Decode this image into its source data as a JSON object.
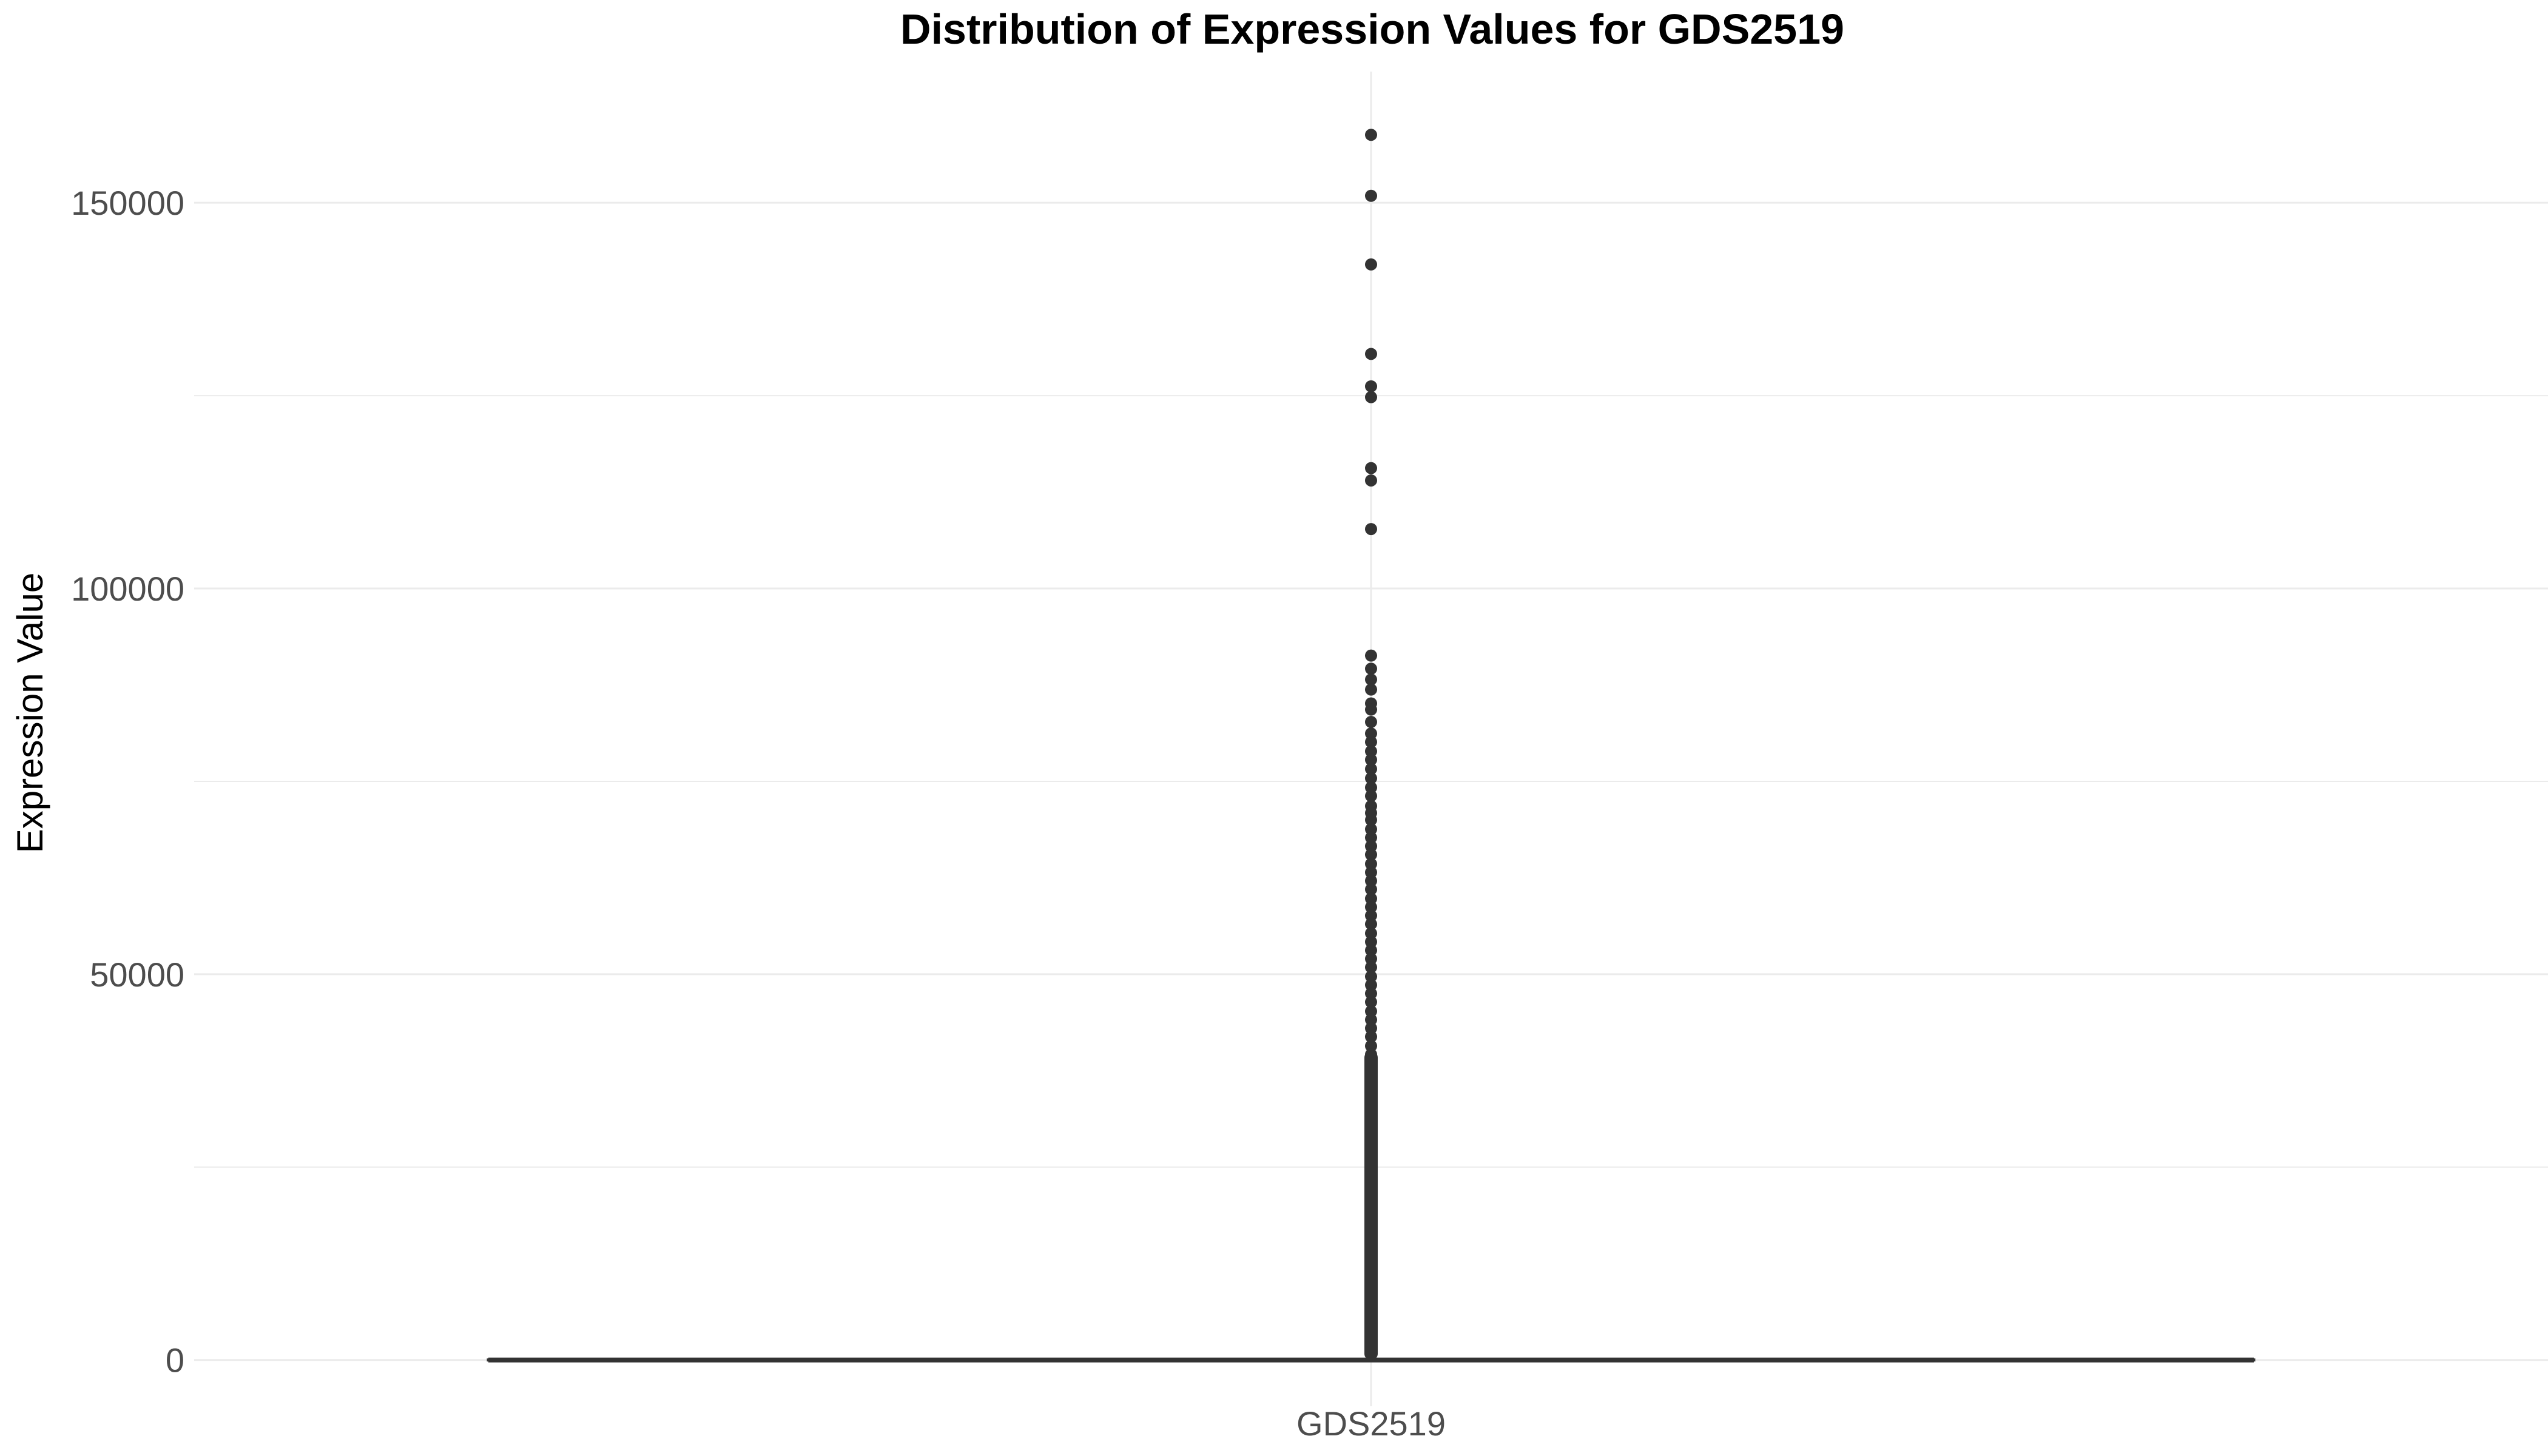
{
  "chart_data": {
    "type": "boxplot",
    "title": "Distribution of Expression Values for GDS2519",
    "xlabel": "",
    "ylabel": "Expression Value",
    "categories": [
      "GDS2519"
    ],
    "ylim": [
      -6000,
      167000
    ],
    "y_ticks": [
      0,
      50000,
      100000,
      150000
    ],
    "y_minor_ticks": [
      25000,
      75000,
      125000
    ],
    "grid": true,
    "legend": "none",
    "box": {
      "category": "GDS2519",
      "q1": 0,
      "median": 0,
      "q3": 0,
      "whisker_low": 0,
      "whisker_high": 0
    },
    "outliers": [
      158800,
      150900,
      142000,
      130400,
      126200,
      124800,
      115600,
      114000,
      107700,
      91300,
      89600,
      88200,
      86900,
      85100,
      84300,
      82700,
      81200,
      80100,
      78900,
      77800,
      76600,
      75400,
      74200,
      73100,
      71800,
      70900,
      70000,
      68800,
      67700,
      66600,
      65500,
      64300,
      63200,
      62100,
      61000,
      59800,
      58700,
      57600,
      56500,
      55300,
      54200,
      53100,
      52000,
      50900,
      49700,
      48600,
      47500,
      46400,
      45200,
      44100,
      43000,
      41900,
      40700,
      39600,
      38500,
      37400,
      36200,
      35100,
      34000,
      32900,
      31700,
      30600,
      29500,
      28400,
      27200,
      26100,
      25000,
      23900,
      22700,
      21600,
      20500,
      19400,
      18200,
      17100,
      16000,
      14900,
      13700,
      12600,
      11500,
      10400,
      9200,
      8100,
      7000,
      5900,
      4700,
      3600,
      2500,
      1400
    ],
    "colors": {
      "box": "#333333",
      "outlier": "#333333",
      "grid": "#ebebeb"
    }
  }
}
